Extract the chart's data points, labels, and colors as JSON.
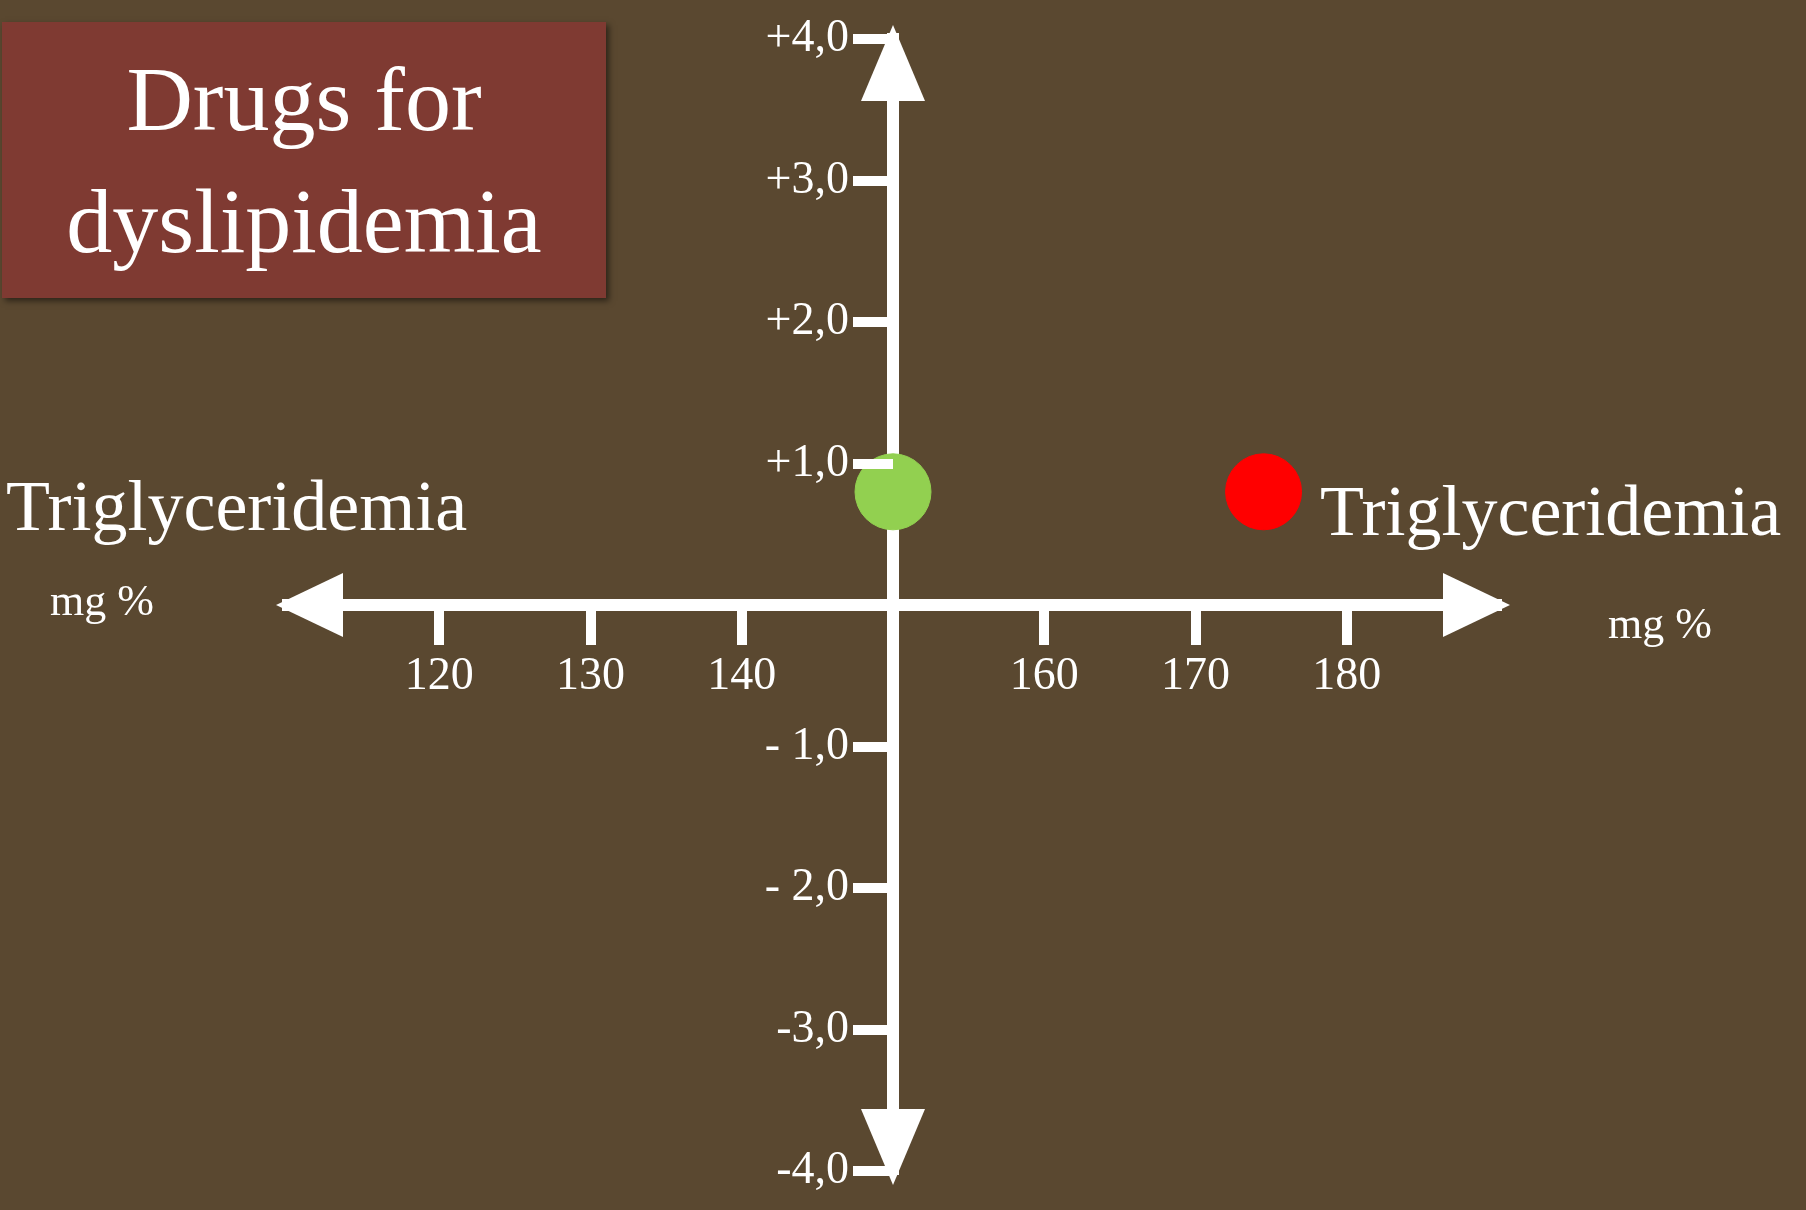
{
  "chart_data": {
    "type": "scatter",
    "title": "Drugs for dyslipidemia",
    "xlabel": "Triglyceridemia",
    "annotations": [
      "mg %",
      "Triglyceridemia",
      "mg %"
    ],
    "x": [
      150,
      174.5
    ],
    "values": [
      0.8,
      0.8
    ],
    "colors": [
      "#92d050",
      "#ff0000"
    ],
    "xlim": [
      110,
      190
    ],
    "xticks": [
      120,
      130,
      140,
      160,
      170,
      180
    ],
    "ylim": [
      -4,
      4
    ],
    "yticks": [
      {
        "value": 4,
        "label": "+4,0"
      },
      {
        "value": 3,
        "label": "+3,0"
      },
      {
        "value": 2,
        "label": "+2,0"
      },
      {
        "value": 1,
        "label": "+1,0"
      },
      {
        "value": -1,
        "label": "- 1,0"
      },
      {
        "value": -2,
        "label": "- 2,0"
      },
      {
        "value": -3,
        "label": "-3,0"
      },
      {
        "value": -4,
        "label": "-4,0"
      }
    ],
    "grid": false,
    "legend": false,
    "marker": "circle"
  }
}
